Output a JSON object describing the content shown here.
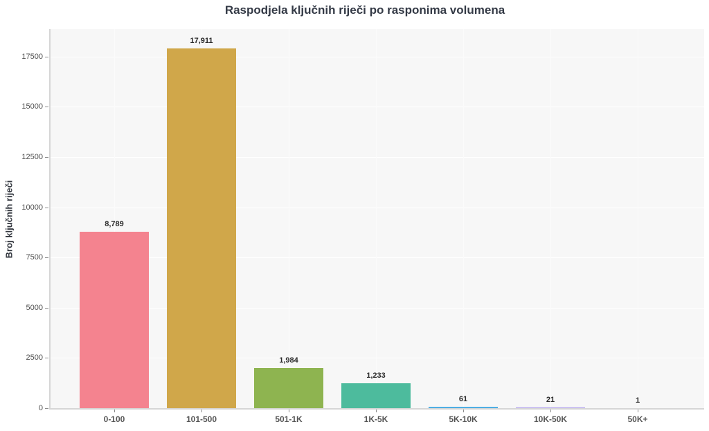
{
  "chart_data": {
    "type": "bar",
    "title": "Raspodjela ključnih riječi po rasponima volumena",
    "ylabel": "Broj ključnih riječi",
    "xlabel": "",
    "categories": [
      "0-100",
      "101-500",
      "501-1K",
      "1K-5K",
      "5K-10K",
      "10K-50K",
      "50K+"
    ],
    "values": [
      8789,
      17911,
      1984,
      1233,
      61,
      21,
      1
    ],
    "value_labels": [
      "8,789",
      "17,911",
      "1,984",
      "1,233",
      "61",
      "21",
      "1"
    ],
    "bar_colors": [
      "#f4838f",
      "#d0a74a",
      "#8eb450",
      "#4dbb9d",
      "#4faee3",
      "#a796ec",
      "#e87fd0"
    ],
    "yticks": [
      0,
      2500,
      5000,
      7500,
      10000,
      12500,
      15000,
      17500
    ],
    "ytick_labels": [
      "0",
      "2500",
      "5000",
      "7500",
      "10000",
      "12500",
      "15000",
      "17500"
    ],
    "ylim": [
      0,
      18870
    ],
    "grid": true,
    "legend": false,
    "colors": {
      "plot_background": "#f7f7f7",
      "gridline_horizontal": "#ffffff",
      "gridline_vertical": "#fbfbfb",
      "axis_line": "#d6d6d6",
      "tick_mark": "#8a8a8a",
      "title_text": "#343a46",
      "axis_label_text": "#33373f",
      "value_label_text": "#2b2b2b",
      "x_tick_text": "#555555",
      "y_tick_text": "#4f4f4f"
    }
  }
}
